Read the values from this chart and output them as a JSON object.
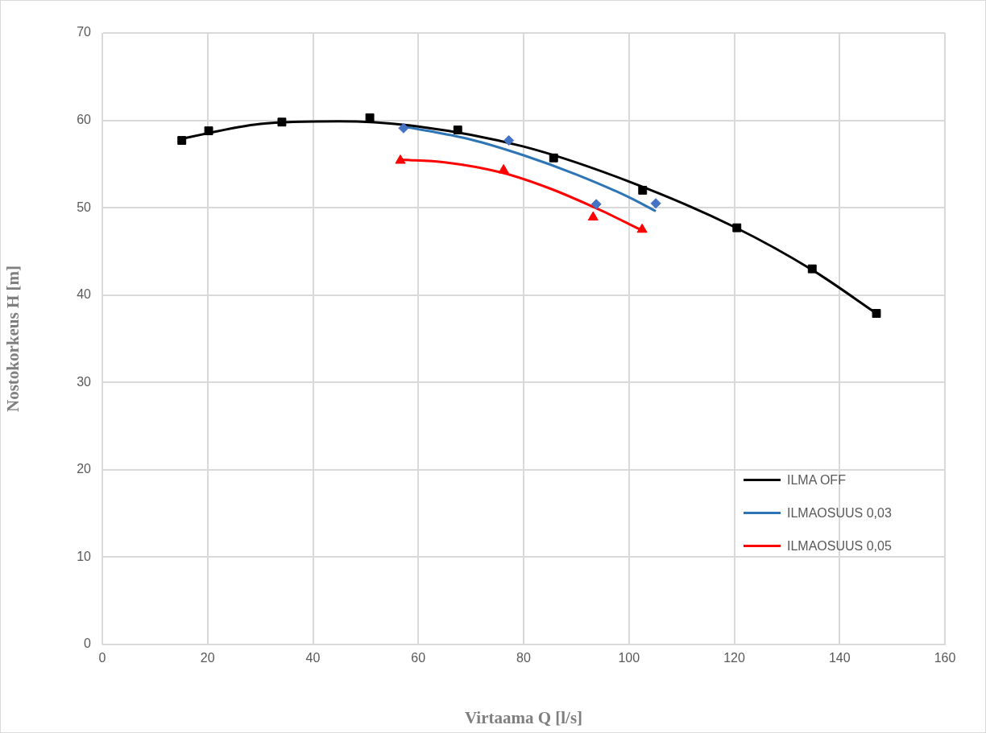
{
  "chart_data": {
    "type": "scatter",
    "xlabel": "Virtaama Q [l/s]",
    "ylabel": "Nostokorkeus H [m]",
    "xlim": [
      0,
      160
    ],
    "xticks": [
      0,
      20,
      40,
      60,
      80,
      100,
      120,
      140,
      160
    ],
    "ylim": [
      0,
      70
    ],
    "yticks": [
      0,
      10,
      20,
      30,
      40,
      50,
      60,
      70
    ],
    "grid": true,
    "legend": "bottom right",
    "series": [
      {
        "type": "scatter",
        "marker": "square",
        "color": "#000000",
        "x": [
          15.1,
          20.2,
          34.1,
          50.8,
          67.5,
          85.7,
          102.6,
          120.5,
          134.8,
          147.0
        ],
        "values": [
          57.7,
          58.8,
          59.8,
          60.3,
          58.9,
          55.7,
          52.0,
          47.7,
          43.0,
          37.9
        ]
      },
      {
        "type": "scatter",
        "marker": "diamond",
        "color": "#4472c4",
        "x": [
          57.2,
          77.2,
          93.8,
          105.1
        ],
        "values": [
          59.1,
          57.7,
          50.4,
          50.5
        ]
      },
      {
        "type": "scatter",
        "marker": "triangle",
        "color": "#ff0000",
        "x": [
          56.6,
          76.2,
          93.2,
          102.5
        ],
        "values": [
          55.4,
          54.3,
          48.9,
          47.5
        ]
      },
      {
        "type": "line",
        "name": "ILMA OFF",
        "marker": "none",
        "color": "#000000",
        "x": [
          15.1,
          30,
          45,
          60,
          80,
          100,
          120,
          135,
          147.0
        ],
        "values": [
          57.9,
          59.6,
          59.9,
          59.3,
          57.0,
          53.0,
          47.8,
          42.8,
          37.9
        ]
      },
      {
        "type": "line",
        "name": "ILMAOSUUS 0,03",
        "marker": "none",
        "color": "#2e75b6",
        "x": [
          57.2,
          70,
          80,
          90,
          100,
          105.1
        ],
        "values": [
          59.3,
          57.8,
          56.0,
          53.8,
          51.2,
          49.6
        ]
      },
      {
        "type": "line",
        "name": "ILMAOSUUS 0,05",
        "marker": "none",
        "color": "#ff0000",
        "x": [
          56.6,
          65,
          76,
          85,
          95,
          102.5
        ],
        "values": [
          55.5,
          55.2,
          54.0,
          52.2,
          49.6,
          47.4
        ]
      }
    ]
  }
}
